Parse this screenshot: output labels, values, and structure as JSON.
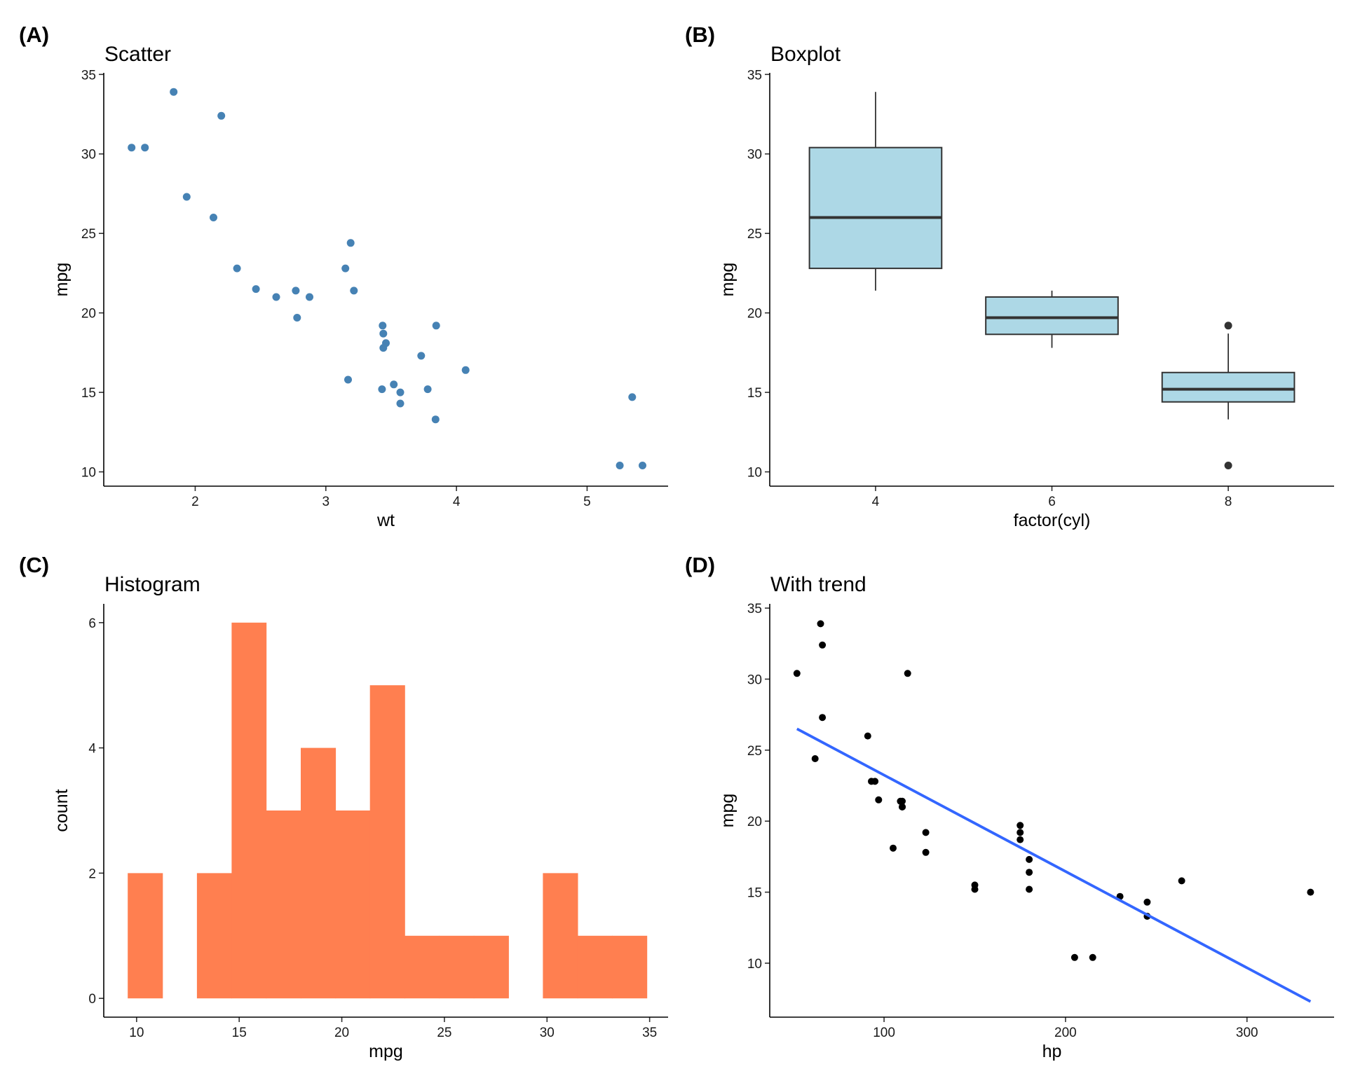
{
  "chart_data": [
    {
      "panel_tag": "(A)",
      "type": "scatter",
      "title": "Scatter",
      "xlabel": "wt",
      "ylabel": "mpg",
      "xlim": [
        1.3,
        5.62
      ],
      "ylim": [
        9.1,
        35.1
      ],
      "xticks": [
        2,
        3,
        4,
        5
      ],
      "yticks": [
        10,
        15,
        20,
        25,
        30,
        35
      ],
      "point_color": "#4682B4",
      "grid": false,
      "points": [
        [
          1.513,
          30.4
        ],
        [
          1.615,
          30.4
        ],
        [
          1.835,
          33.9
        ],
        [
          2.2,
          32.4
        ],
        [
          1.935,
          27.3
        ],
        [
          2.14,
          26.0
        ],
        [
          2.32,
          22.8
        ],
        [
          2.465,
          21.5
        ],
        [
          2.62,
          21.0
        ],
        [
          2.77,
          21.4
        ],
        [
          2.875,
          21.0
        ],
        [
          2.78,
          19.7
        ],
        [
          3.15,
          22.8
        ],
        [
          3.19,
          24.4
        ],
        [
          3.215,
          21.4
        ],
        [
          3.17,
          15.8
        ],
        [
          3.435,
          19.2
        ],
        [
          3.44,
          18.7
        ],
        [
          3.44,
          17.8
        ],
        [
          3.46,
          18.1
        ],
        [
          3.43,
          15.2
        ],
        [
          3.52,
          15.5
        ],
        [
          3.57,
          15.0
        ],
        [
          3.57,
          14.3
        ],
        [
          3.73,
          17.3
        ],
        [
          3.78,
          15.2
        ],
        [
          3.84,
          13.3
        ],
        [
          3.845,
          19.2
        ],
        [
          4.07,
          16.4
        ],
        [
          5.25,
          10.4
        ],
        [
          5.345,
          14.7
        ],
        [
          5.424,
          10.4
        ]
      ]
    },
    {
      "panel_tag": "(B)",
      "type": "box",
      "title": "Boxplot",
      "xlabel": "factor(cyl)",
      "ylabel": "mpg",
      "ylim": [
        9.1,
        35.1
      ],
      "yticks": [
        10,
        15,
        20,
        25,
        30,
        35
      ],
      "fill_color": "#ADD8E6",
      "grid": false,
      "categories": [
        "4",
        "6",
        "8"
      ],
      "boxes": [
        {
          "category": "4",
          "lower_whisker": 21.4,
          "q1": 22.8,
          "median": 26.0,
          "q3": 30.4,
          "upper_whisker": 33.9,
          "outliers": []
        },
        {
          "category": "6",
          "lower_whisker": 17.8,
          "q1": 18.65,
          "median": 19.7,
          "q3": 21.0,
          "upper_whisker": 21.4,
          "outliers": []
        },
        {
          "category": "8",
          "lower_whisker": 13.3,
          "q1": 14.4,
          "median": 15.2,
          "q3": 16.25,
          "upper_whisker": 18.7,
          "outliers": [
            19.2,
            10.4
          ]
        }
      ]
    },
    {
      "panel_tag": "(C)",
      "type": "bar",
      "title": "Histogram",
      "xlabel": "mpg",
      "ylabel": "count",
      "xlim": [
        8.4,
        35.9
      ],
      "ylim": [
        -0.3,
        6.3
      ],
      "xticks": [
        10,
        15,
        20,
        25,
        30,
        35
      ],
      "yticks": [
        0,
        2,
        4,
        6
      ],
      "fill_color": "#FF7F50",
      "grid": false,
      "bins": [
        {
          "x0": 9.57,
          "x1": 11.26,
          "count": 2
        },
        {
          "x0": 11.26,
          "x1": 12.94,
          "count": 0
        },
        {
          "x0": 12.94,
          "x1": 14.63,
          "count": 2
        },
        {
          "x0": 14.63,
          "x1": 16.31,
          "count": 6
        },
        {
          "x0": 16.31,
          "x1": 18.0,
          "count": 3
        },
        {
          "x0": 18.0,
          "x1": 19.69,
          "count": 4
        },
        {
          "x0": 19.69,
          "x1": 21.37,
          "count": 3
        },
        {
          "x0": 21.37,
          "x1": 23.06,
          "count": 5
        },
        {
          "x0": 23.06,
          "x1": 24.74,
          "count": 1
        },
        {
          "x0": 24.74,
          "x1": 26.43,
          "count": 1
        },
        {
          "x0": 26.43,
          "x1": 28.12,
          "count": 1
        },
        {
          "x0": 28.12,
          "x1": 29.8,
          "count": 0
        },
        {
          "x0": 29.8,
          "x1": 31.49,
          "count": 2
        },
        {
          "x0": 31.49,
          "x1": 33.17,
          "count": 1
        },
        {
          "x0": 33.17,
          "x1": 34.86,
          "count": 1
        }
      ]
    },
    {
      "panel_tag": "(D)",
      "type": "scatter",
      "title": "With trend",
      "xlabel": "hp",
      "ylabel": "mpg",
      "xlim": [
        37.0,
        348.0
      ],
      "ylim": [
        6.2,
        35.3
      ],
      "xticks": [
        100,
        200,
        300
      ],
      "yticks": [
        10,
        15,
        20,
        25,
        30,
        35
      ],
      "point_color": "#000000",
      "trend_color": "#3366FF",
      "grid": false,
      "trend": {
        "x": [
          52,
          335
        ],
        "y": [
          26.5,
          7.3
        ]
      },
      "points": [
        [
          52,
          30.4
        ],
        [
          62,
          24.4
        ],
        [
          65,
          33.9
        ],
        [
          66,
          32.4
        ],
        [
          66,
          27.3
        ],
        [
          91,
          26.0
        ],
        [
          93,
          22.8
        ],
        [
          95,
          22.8
        ],
        [
          97,
          21.5
        ],
        [
          105,
          18.1
        ],
        [
          109,
          21.4
        ],
        [
          110,
          21.4
        ],
        [
          110,
          21.0
        ],
        [
          110,
          21.0
        ],
        [
          113,
          30.4
        ],
        [
          123,
          19.2
        ],
        [
          123,
          17.8
        ],
        [
          150,
          15.5
        ],
        [
          150,
          15.2
        ],
        [
          175,
          19.7
        ],
        [
          175,
          19.2
        ],
        [
          175,
          18.7
        ],
        [
          180,
          17.3
        ],
        [
          180,
          16.4
        ],
        [
          180,
          15.2
        ],
        [
          205,
          10.4
        ],
        [
          215,
          10.4
        ],
        [
          230,
          14.7
        ],
        [
          245,
          14.3
        ],
        [
          245,
          13.3
        ],
        [
          264,
          15.8
        ],
        [
          335,
          15.0
        ]
      ]
    }
  ]
}
